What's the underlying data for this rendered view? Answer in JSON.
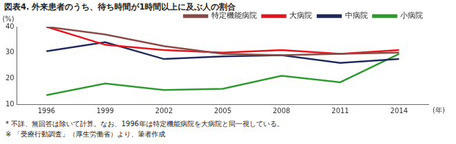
{
  "chart_data": {
    "type": "line",
    "title": "図表4. 外来患者のうち、待ち時間が1時間以上に及ぶ人の割合",
    "xlabel": "(年)",
    "ylabel": "(%)",
    "categories": [
      "1996",
      "1999",
      "2002",
      "2005",
      "2008",
      "2011",
      "2014"
    ],
    "series": [
      {
        "name": "特定機能病院",
        "color": "#8b4a47",
        "values": [
          40,
          37,
          32.5,
          29.5,
          29,
          29.5,
          30
        ]
      },
      {
        "name": "大病院",
        "color": "#e8141b",
        "values": [
          40,
          33,
          31,
          30,
          31,
          29.5,
          31
        ]
      },
      {
        "name": "中病院",
        "color": "#1f2a5c",
        "values": [
          30.5,
          34,
          27.5,
          28.5,
          29,
          26,
          27.5
        ]
      },
      {
        "name": "小病院",
        "color": "#2e9a2e",
        "values": [
          13.5,
          18,
          15.5,
          16,
          21,
          18.5,
          29.5
        ]
      }
    ],
    "ylim": [
      10,
      40
    ],
    "yticks": [
      10,
      20,
      30,
      40
    ],
    "grid": false,
    "legend": "top-right",
    "annotations": [
      "* 不詳、無回答は除いて計算。なお、1996年は特定機能病院を大病院と同一視している。",
      "※ 「受療行動調査」（厚生労働省）より、筆者作成"
    ]
  }
}
